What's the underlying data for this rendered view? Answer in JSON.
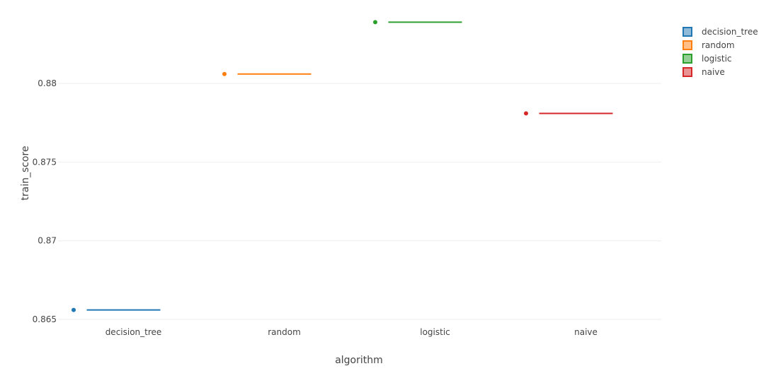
{
  "chart_data": {
    "type": "box",
    "title": "",
    "xlabel": "algorithm",
    "ylabel": "train_score",
    "categories": [
      "decision_tree",
      "random",
      "logistic",
      "naive"
    ],
    "y_ticks": [
      "0.865",
      "0.87",
      "0.875",
      "0.88"
    ],
    "y_tick_values": [
      0.865,
      0.87,
      0.875,
      0.88
    ],
    "ylim": [
      0.865,
      0.8845
    ],
    "grid": true,
    "legend_position": "top-right",
    "series": [
      {
        "name": "decision_tree",
        "category": "decision_tree",
        "value": 0.8656,
        "color": "#1f77b4"
      },
      {
        "name": "random",
        "category": "random",
        "value": 0.8806,
        "color": "#ff7f0e"
      },
      {
        "name": "logistic",
        "category": "logistic",
        "value": 0.8839,
        "color": "#2ca02c"
      },
      {
        "name": "naive",
        "category": "naive",
        "value": 0.8781,
        "color": "#d62728"
      }
    ]
  }
}
